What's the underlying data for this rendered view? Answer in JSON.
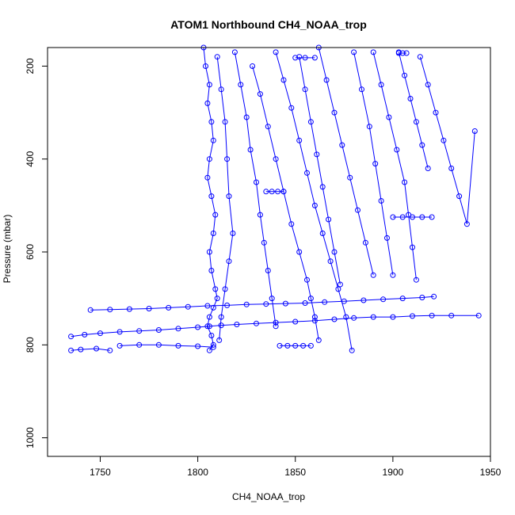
{
  "chart_data": {
    "type": "scatter",
    "title": "ATOM1 Northbound CH4_NOAA_trop",
    "xlabel": "CH4_NOAA_trop",
    "ylabel": "Pressure (mbar)",
    "xlim": [
      1723,
      1950
    ],
    "ylim": [
      1040,
      160
    ],
    "y_reversed": true,
    "x_ticks": [
      1750,
      1800,
      1850,
      1900,
      1950
    ],
    "y_ticks": [
      200,
      400,
      600,
      800,
      1000
    ],
    "grid": false,
    "legend": "none",
    "marker": "open-circle",
    "connected": true,
    "color": "#0000ff",
    "series": [
      {
        "x": [
          1735,
          1742,
          1750,
          1760,
          1770,
          1780,
          1790,
          1800,
          1806,
          1812,
          1820,
          1830,
          1840,
          1850,
          1860,
          1870,
          1880,
          1890,
          1900,
          1910,
          1920,
          1930,
          1944
        ],
        "y": [
          782,
          778,
          775,
          772,
          770,
          768,
          765,
          762,
          760,
          758,
          756,
          754,
          752,
          750,
          748,
          745,
          742,
          740,
          740,
          738,
          737,
          737,
          737
        ]
      },
      {
        "x": [
          1745,
          1755,
          1765,
          1775,
          1785,
          1795,
          1805,
          1815,
          1825,
          1835,
          1845,
          1855,
          1865,
          1875,
          1885,
          1895,
          1905,
          1915,
          1921
        ],
        "y": [
          725,
          724,
          723,
          722,
          720,
          718,
          716,
          715,
          713,
          712,
          711,
          710,
          708,
          706,
          704,
          702,
          700,
          698,
          696
        ]
      },
      {
        "x": [
          1735,
          1740,
          1748,
          1755
        ],
        "y": [
          812,
          810,
          808,
          812
        ]
      },
      {
        "x": [
          1760,
          1770,
          1780,
          1790,
          1800,
          1808
        ],
        "y": [
          802,
          800,
          800,
          802,
          803,
          805
        ]
      },
      {
        "x": [
          1803,
          1804,
          1806,
          1805,
          1807,
          1808,
          1806,
          1805,
          1807,
          1809,
          1808,
          1806,
          1807,
          1809,
          1810,
          1808,
          1806,
          1805,
          1807,
          1808,
          1806
        ],
        "y": [
          160,
          200,
          240,
          280,
          320,
          360,
          400,
          440,
          480,
          520,
          560,
          600,
          640,
          680,
          700,
          720,
          740,
          760,
          780,
          800,
          812
        ]
      },
      {
        "x": [
          1810,
          1812,
          1814,
          1815,
          1816,
          1818,
          1816,
          1814,
          1812,
          1811
        ],
        "y": [
          180,
          250,
          320,
          400,
          480,
          560,
          620,
          680,
          740,
          790
        ]
      },
      {
        "x": [
          1819,
          1822,
          1825,
          1827,
          1830,
          1832,
          1834,
          1836,
          1838,
          1840
        ],
        "y": [
          170,
          240,
          310,
          380,
          450,
          520,
          580,
          640,
          700,
          760
        ]
      },
      {
        "x": [
          1828,
          1832,
          1836,
          1840,
          1844,
          1848,
          1852,
          1856,
          1858,
          1860,
          1862
        ],
        "y": [
          200,
          260,
          330,
          400,
          470,
          540,
          600,
          660,
          700,
          740,
          790
        ]
      },
      {
        "x": [
          1840,
          1844,
          1848,
          1852,
          1856,
          1860,
          1864,
          1868,
          1872,
          1876,
          1879
        ],
        "y": [
          170,
          230,
          290,
          360,
          430,
          500,
          560,
          620,
          680,
          740,
          812
        ]
      },
      {
        "x": [
          1852,
          1855,
          1858,
          1861,
          1864,
          1867,
          1870,
          1873
        ],
        "y": [
          180,
          250,
          320,
          390,
          460,
          530,
          600,
          670
        ]
      },
      {
        "x": [
          1862,
          1866,
          1870,
          1874,
          1878,
          1882,
          1886,
          1890
        ],
        "y": [
          160,
          230,
          300,
          370,
          440,
          510,
          580,
          650
        ]
      },
      {
        "x": [
          1880,
          1884,
          1888,
          1891,
          1894,
          1897,
          1900
        ],
        "y": [
          170,
          250,
          330,
          410,
          490,
          570,
          650
        ]
      },
      {
        "x": [
          1890,
          1894,
          1898,
          1902,
          1906,
          1908,
          1910,
          1912
        ],
        "y": [
          170,
          240,
          310,
          380,
          450,
          520,
          590,
          660
        ]
      },
      {
        "x": [
          1903,
          1906,
          1909,
          1912,
          1915,
          1918
        ],
        "y": [
          170,
          220,
          270,
          320,
          370,
          420
        ]
      },
      {
        "x": [
          1914,
          1918,
          1922,
          1926,
          1930,
          1934,
          1938,
          1942
        ],
        "y": [
          180,
          240,
          300,
          360,
          420,
          480,
          540,
          340
        ]
      },
      {
        "x": [
          1842,
          1846,
          1850,
          1854,
          1858
        ],
        "y": [
          802,
          802,
          802,
          802,
          802
        ]
      },
      {
        "x": [
          1835,
          1838,
          1841,
          1844
        ],
        "y": [
          470,
          470,
          470,
          470
        ]
      },
      {
        "x": [
          1850,
          1855,
          1860
        ],
        "y": [
          182,
          182,
          182
        ]
      },
      {
        "x": [
          1900,
          1905,
          1910,
          1915,
          1920
        ],
        "y": [
          525,
          525,
          525,
          525,
          525
        ]
      },
      {
        "x": [
          1903,
          1905,
          1907
        ],
        "y": [
          172,
          172,
          172
        ]
      }
    ]
  }
}
